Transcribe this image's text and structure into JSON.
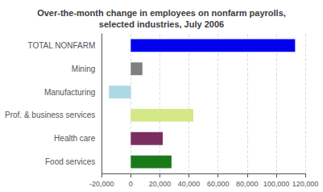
{
  "chart_data": {
    "type": "bar",
    "orientation": "horizontal",
    "title": "Over-the-month change in employees on nonfarm payrolls,\nselected industries, July 2006",
    "categories": [
      "Food services",
      "Health care",
      "Prof. & business services",
      "Manufacturing",
      "Mining",
      "TOTAL NONFARM"
    ],
    "values": [
      28000,
      22000,
      43000,
      -15000,
      8000,
      113000
    ],
    "colors": [
      "#1a7a1a",
      "#7b2d5e",
      "#d4e88a",
      "#add8e6",
      "#808080",
      "#0000ee"
    ],
    "xlim": [
      -20000,
      120000
    ],
    "xticks": [
      {
        "value": -20000,
        "label": "-20,000"
      },
      0,
      {
        "value": 20000,
        "label": "20,000"
      },
      {
        "value": 40000,
        "label": "40,000"
      },
      {
        "value": 60000,
        "label": "60,000"
      },
      {
        "value": 80000,
        "label": "80,000"
      },
      {
        "value": 100000,
        "label": "100,000"
      },
      {
        "value": 120000,
        "label": "120,000"
      }
    ],
    "grid": true
  }
}
